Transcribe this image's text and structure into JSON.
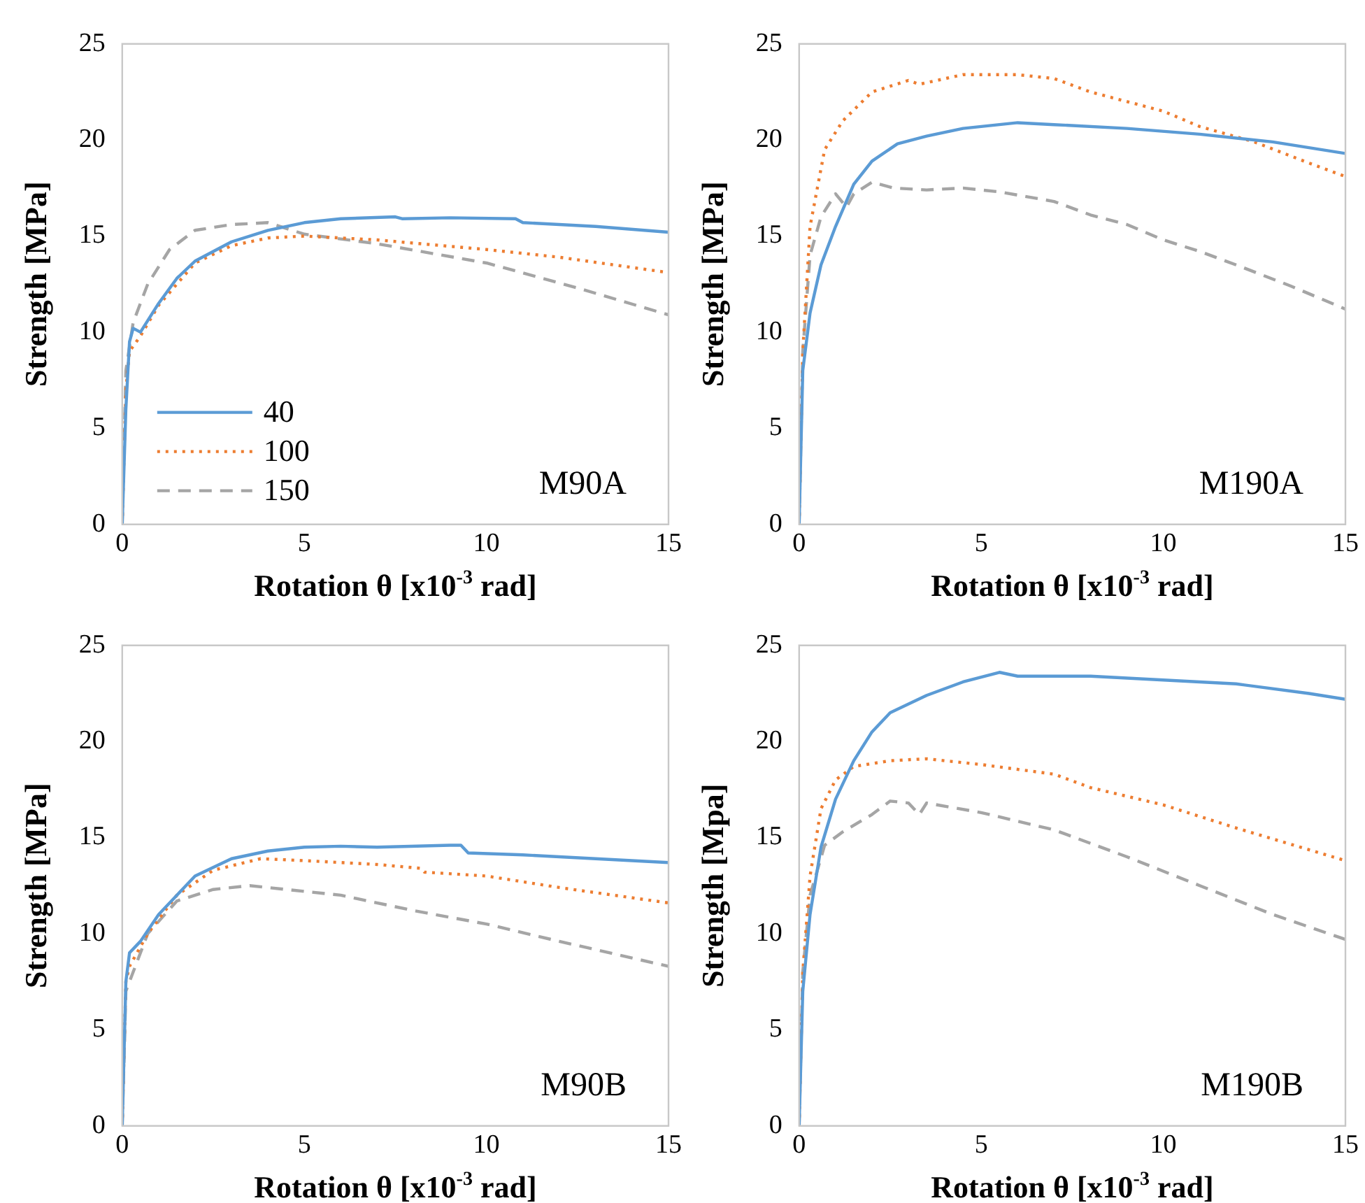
{
  "chart_data": [
    {
      "type": "line",
      "xlabel": "Rotation θ [x10$^{-3}$ rad]",
      "ylabel": "Strength [MPa]",
      "xlim": [
        0,
        15
      ],
      "ylim": [
        0,
        25
      ],
      "xticks": [
        0,
        5,
        10,
        15
      ],
      "yticks": [
        0,
        5,
        10,
        15,
        20,
        25
      ],
      "grid": false,
      "legend": "bottom left",
      "marker": "none",
      "annotations": [
        "M90A"
      ],
      "series": [
        {
          "name": "40",
          "color": "#5b9bd5",
          "line_style": "solid",
          "x": [
            0,
            0.1,
            0.2,
            0.3,
            0.5,
            1,
            1.5,
            2,
            3,
            4,
            5,
            6,
            7.5,
            7.7,
            9,
            10.8,
            11,
            13,
            15
          ],
          "values": [
            0,
            6,
            9.5,
            10.2,
            10,
            11.5,
            12.8,
            13.7,
            14.7,
            15.3,
            15.7,
            15.9,
            16,
            15.9,
            15.95,
            15.9,
            15.7,
            15.5,
            15.2
          ]
        },
        {
          "name": "100",
          "color": "#ed7d31",
          "line_style": "dotted",
          "x": [
            0,
            0.1,
            0.2,
            0.5,
            1,
            2,
            3,
            4,
            5,
            7,
            10,
            12,
            15
          ],
          "values": [
            0,
            7,
            9,
            9.8,
            11.4,
            13.6,
            14.5,
            14.9,
            15,
            14.8,
            14.3,
            13.9,
            13.1
          ]
        },
        {
          "name": "150",
          "color": "#a5a5a5",
          "line_style": "dashed",
          "x": [
            0,
            0.1,
            0.3,
            0.7,
            1.3,
            2,
            3,
            4,
            5,
            7,
            10,
            12.5,
            15
          ],
          "values": [
            0,
            8,
            10.5,
            12.5,
            14.3,
            15.3,
            15.6,
            15.7,
            15.1,
            14.6,
            13.6,
            12.3,
            10.9
          ]
        }
      ]
    },
    {
      "type": "line",
      "xlabel": "Rotation θ [x10$^{-3}$ rad]",
      "ylabel": "Strength [MPa]",
      "xlim": [
        0,
        15
      ],
      "ylim": [
        0,
        25
      ],
      "xticks": [
        0,
        5,
        10,
        15
      ],
      "yticks": [
        0,
        5,
        10,
        15,
        20,
        25
      ],
      "grid": false,
      "marker": "none",
      "annotations": [
        "M190A"
      ],
      "series": [
        {
          "color": "#5b9bd5",
          "line_style": "solid",
          "x": [
            0,
            0.1,
            0.3,
            0.6,
            1,
            1.5,
            2,
            2.7,
            3.5,
            4.5,
            6,
            7,
            9,
            11,
            13,
            15
          ],
          "values": [
            0,
            8,
            11,
            13.5,
            15.5,
            17.7,
            18.9,
            19.8,
            20.2,
            20.6,
            20.9,
            20.8,
            20.6,
            20.3,
            19.9,
            19.3
          ]
        },
        {
          "color": "#ed7d31",
          "line_style": "dotted",
          "x": [
            0,
            0.1,
            0.3,
            0.7,
            1.2,
            2,
            3,
            3.3,
            4.5,
            6,
            7,
            8,
            10,
            11,
            12.5,
            14,
            15
          ],
          "values": [
            0,
            9,
            15.5,
            19.5,
            21,
            22.5,
            23.1,
            22.9,
            23.4,
            23.4,
            23.2,
            22.5,
            21.5,
            20.7,
            19.9,
            18.8,
            18.1
          ]
        },
        {
          "color": "#a5a5a5",
          "line_style": "dashed",
          "x": [
            0,
            0.1,
            0.3,
            0.6,
            1,
            1.3,
            1.5,
            2,
            2.6,
            3.5,
            4.5,
            5.5,
            7,
            8,
            9,
            10,
            11,
            12,
            13.5,
            15
          ],
          "values": [
            0,
            9,
            14,
            16,
            17.2,
            16.5,
            17.2,
            17.8,
            17.5,
            17.4,
            17.5,
            17.3,
            16.8,
            16.1,
            15.6,
            14.8,
            14.2,
            13.5,
            12.4,
            11.2
          ]
        }
      ]
    },
    {
      "type": "line",
      "xlabel": "Rotation θ [x10$^{-3}$ rad]",
      "ylabel": "Strength [MPa]",
      "xlim": [
        0,
        15
      ],
      "ylim": [
        0,
        25
      ],
      "xticks": [
        0,
        5,
        10,
        15
      ],
      "yticks": [
        0,
        5,
        10,
        15,
        20,
        25
      ],
      "grid": false,
      "marker": "none",
      "annotations": [
        "M90B"
      ],
      "series": [
        {
          "color": "#5b9bd5",
          "line_style": "solid",
          "x": [
            0,
            0.1,
            0.2,
            0.5,
            1,
            1.5,
            2,
            3,
            4,
            5,
            6,
            7,
            9,
            9.3,
            9.5,
            11,
            13,
            15
          ],
          "values": [
            0,
            7.5,
            9,
            9.6,
            11,
            12,
            13,
            13.9,
            14.3,
            14.5,
            14.55,
            14.5,
            14.6,
            14.6,
            14.2,
            14.1,
            13.9,
            13.7
          ]
        },
        {
          "color": "#ed7d31",
          "line_style": "dotted",
          "x": [
            0,
            0.1,
            0.2,
            0.7,
            1.5,
            2.5,
            3.8,
            5,
            7,
            8.2,
            8.3,
            10,
            12,
            15
          ],
          "values": [
            0,
            7.5,
            8.3,
            10,
            12,
            13.3,
            13.9,
            13.8,
            13.6,
            13.4,
            13.2,
            13,
            12.4,
            11.6
          ]
        },
        {
          "color": "#a5a5a5",
          "line_style": "dashed",
          "x": [
            0,
            0.1,
            0.3,
            0.7,
            1.5,
            2.5,
            3.5,
            4.5,
            6,
            8,
            10,
            12,
            15
          ],
          "values": [
            0,
            7,
            8,
            10,
            11.7,
            12.3,
            12.5,
            12.3,
            12,
            11.2,
            10.5,
            9.6,
            8.3
          ]
        }
      ]
    },
    {
      "type": "line",
      "xlabel": "Rotation θ [x10$^{-3}$ rad]",
      "ylabel": "Strength [Mpa]",
      "xlim": [
        0,
        15
      ],
      "ylim": [
        0,
        25
      ],
      "xticks": [
        0,
        5,
        10,
        15
      ],
      "yticks": [
        0,
        5,
        10,
        15,
        20,
        25
      ],
      "grid": false,
      "marker": "none",
      "annotations": [
        "M190B"
      ],
      "series": [
        {
          "color": "#5b9bd5",
          "line_style": "solid",
          "x": [
            0,
            0.1,
            0.3,
            0.6,
            1,
            1.5,
            2,
            2.5,
            3.5,
            4.5,
            5.5,
            6,
            8,
            10,
            12,
            14,
            15
          ],
          "values": [
            0,
            7,
            11,
            14.5,
            17,
            19,
            20.5,
            21.5,
            22.4,
            23.1,
            23.6,
            23.4,
            23.4,
            23.2,
            23,
            22.5,
            22.2
          ]
        },
        {
          "color": "#ed7d31",
          "line_style": "dotted",
          "x": [
            0,
            0.1,
            0.3,
            0.6,
            1,
            1.5,
            2.5,
            3.5,
            5,
            7,
            8,
            10,
            12,
            15
          ],
          "values": [
            0,
            8,
            13,
            16.5,
            18,
            18.7,
            19,
            19.1,
            18.8,
            18.3,
            17.6,
            16.7,
            15.5,
            13.8
          ]
        },
        {
          "color": "#a5a5a5",
          "line_style": "dashed",
          "x": [
            0,
            0.1,
            0.3,
            0.7,
            1.2,
            2,
            2.5,
            3,
            3.3,
            3.5,
            5,
            7,
            9,
            11,
            13,
            15
          ],
          "values": [
            0,
            8,
            12,
            14.6,
            15.3,
            16.2,
            16.9,
            16.8,
            16.2,
            16.8,
            16.3,
            15.4,
            14,
            12.5,
            11,
            9.7
          ]
        }
      ]
    }
  ]
}
